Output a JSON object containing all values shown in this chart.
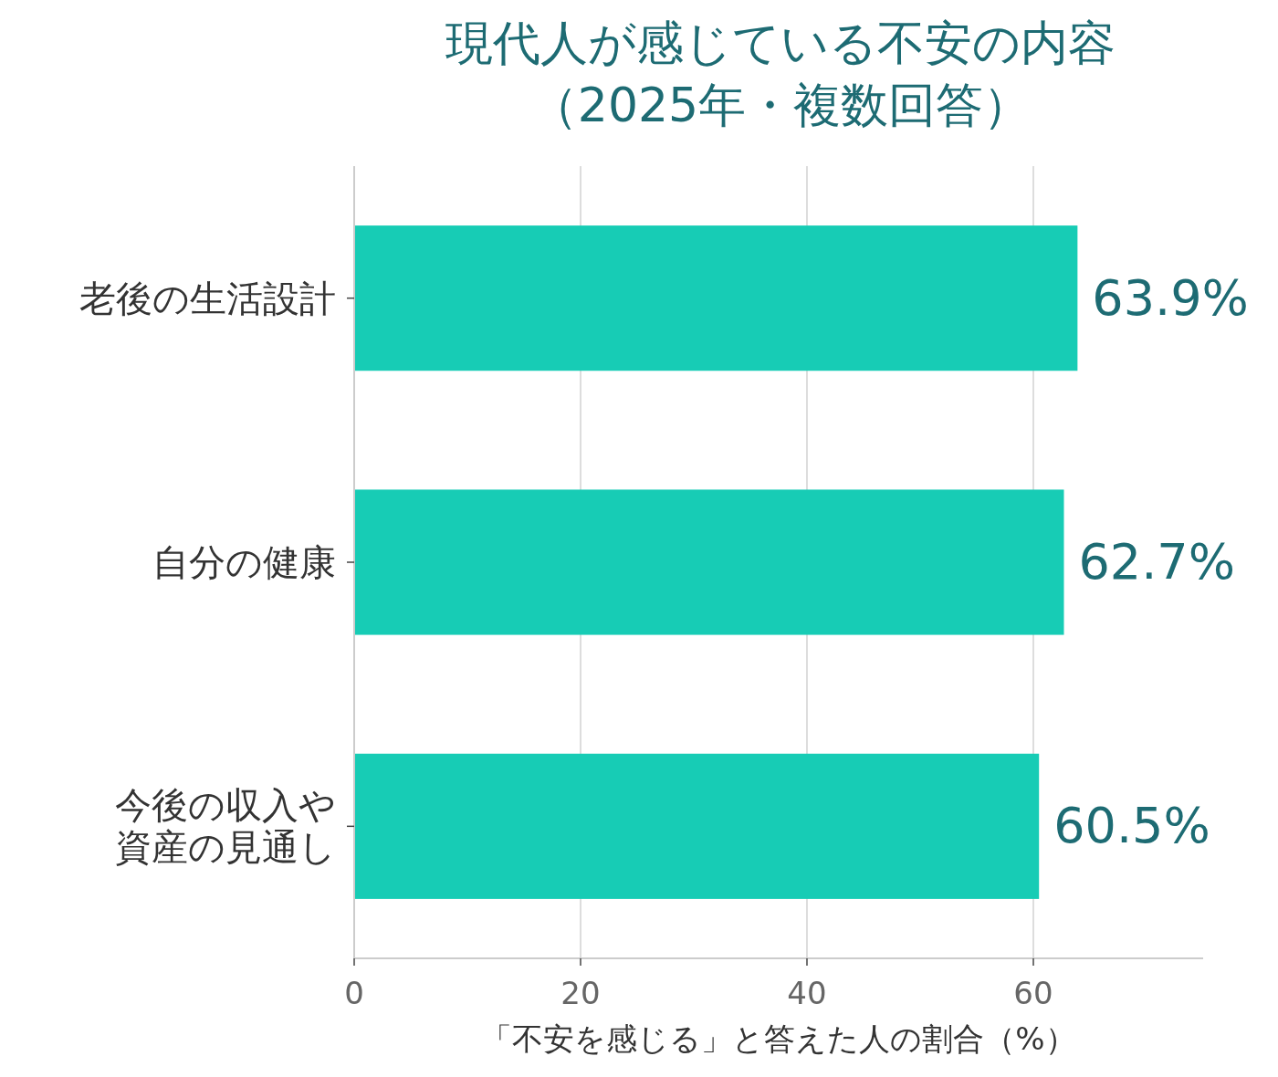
{
  "chart_data": {
    "type": "bar",
    "orientation": "horizontal",
    "title": "現代人が感じている不安の内容（2025年・複数回答）",
    "xlabel": "「不安を感じる」と答えた人の割合（%）",
    "categories": [
      "老後の生活設計",
      "自分の健康",
      "今後の収入や資産の見通し"
    ],
    "values": [
      63.9,
      62.7,
      60.5
    ],
    "value_labels": [
      "63.9%",
      "62.7%",
      "60.5%"
    ],
    "color": "#17ccb5",
    "xlim": [
      0,
      75
    ],
    "xticks": [
      0,
      20,
      40,
      60
    ],
    "grid": "x"
  }
}
